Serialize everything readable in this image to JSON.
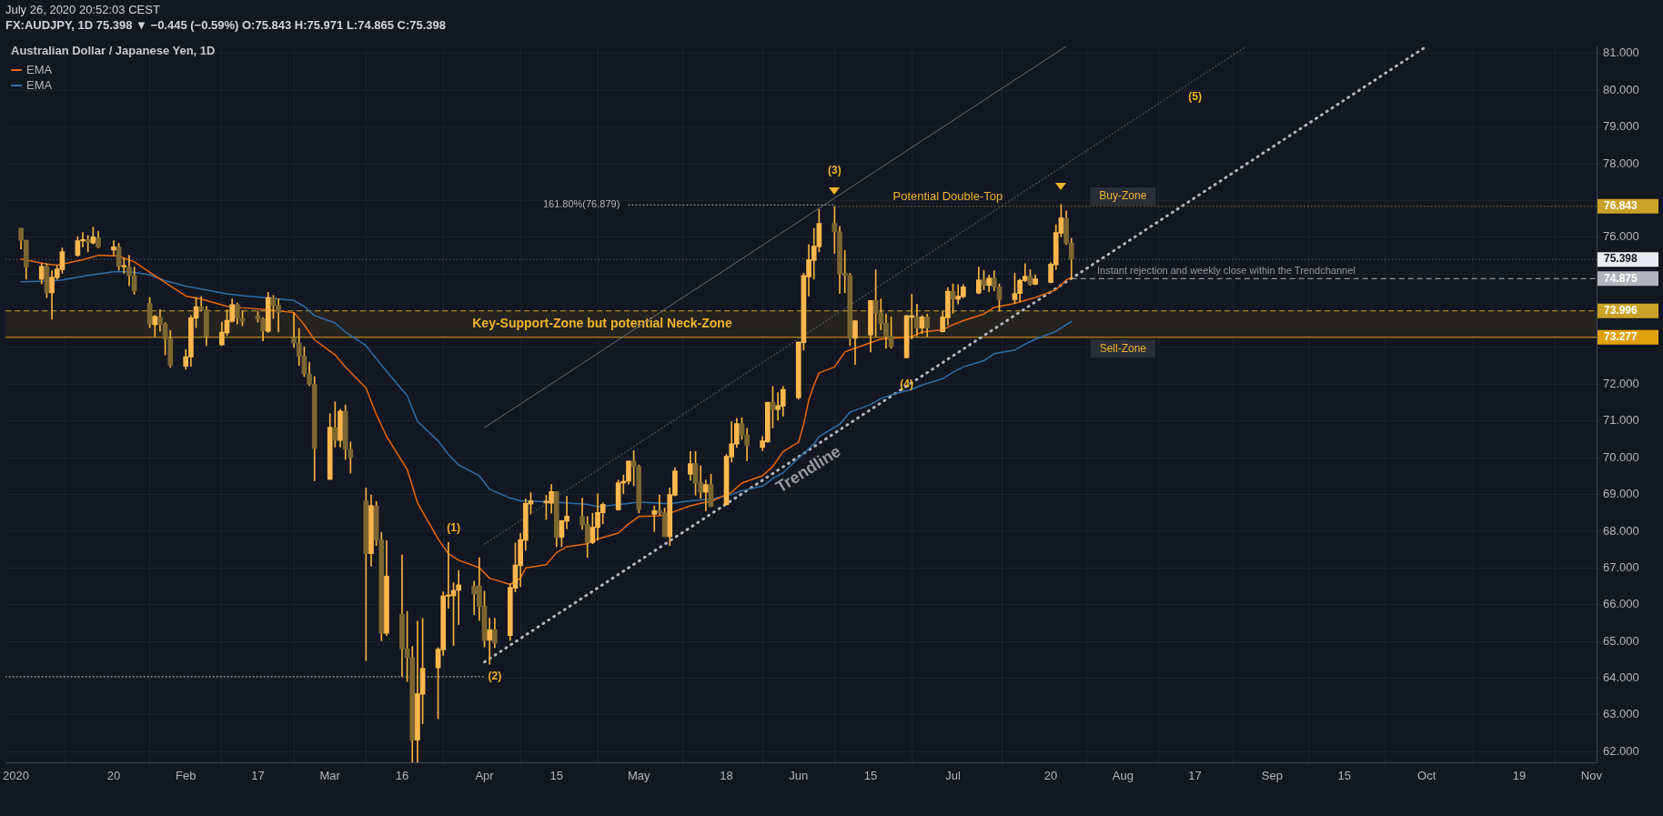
{
  "chart_data": {
    "type": "candlestick",
    "title": "Australian Dollar / Japanese Yen, 1D",
    "subtitle": "FX:AUDJPY, 1D  75.398 ▼ −0.445 (−0.59%) O:75.843 H:75.971 L:74.865 C:75.398",
    "x": [
      "2020-01-02",
      "2020-01-03",
      "2020-01-06",
      "2020-01-07",
      "2020-01-08",
      "2020-01-09",
      "2020-01-10",
      "2020-01-13",
      "2020-01-14",
      "2020-01-15",
      "2020-01-16",
      "2020-01-17",
      "2020-01-20",
      "2020-01-21",
      "2020-01-22",
      "2020-01-23",
      "2020-01-24",
      "2020-01-27",
      "2020-01-28",
      "2020-01-29",
      "2020-01-30",
      "2020-01-31",
      "2020-02-03",
      "2020-02-04",
      "2020-02-05",
      "2020-02-06",
      "2020-02-07",
      "2020-02-10",
      "2020-02-11",
      "2020-02-12",
      "2020-02-13",
      "2020-02-14",
      "2020-02-17",
      "2020-02-18",
      "2020-02-19",
      "2020-02-20",
      "2020-02-21",
      "2020-02-24",
      "2020-02-25",
      "2020-02-26",
      "2020-02-27",
      "2020-02-28",
      "2020-03-02",
      "2020-03-03",
      "2020-03-04",
      "2020-03-05",
      "2020-03-06",
      "2020-03-09",
      "2020-03-10",
      "2020-03-11",
      "2020-03-12",
      "2020-03-13",
      "2020-03-16",
      "2020-03-17",
      "2020-03-18",
      "2020-03-19",
      "2020-03-20",
      "2020-03-23",
      "2020-03-24",
      "2020-03-25",
      "2020-03-26",
      "2020-03-27",
      "2020-03-30",
      "2020-03-31",
      "2020-04-01",
      "2020-04-02",
      "2020-04-03",
      "2020-04-06",
      "2020-04-07",
      "2020-04-08",
      "2020-04-09",
      "2020-04-10",
      "2020-04-13",
      "2020-04-14",
      "2020-04-15",
      "2020-04-16",
      "2020-04-17",
      "2020-04-20",
      "2020-04-21",
      "2020-04-22",
      "2020-04-23",
      "2020-04-24",
      "2020-04-27",
      "2020-04-28",
      "2020-04-29",
      "2020-04-30",
      "2020-05-01",
      "2020-05-04",
      "2020-05-05",
      "2020-05-06",
      "2020-05-07",
      "2020-05-08",
      "2020-05-11",
      "2020-05-12",
      "2020-05-13",
      "2020-05-14",
      "2020-05-15",
      "2020-05-18",
      "2020-05-19",
      "2020-05-20",
      "2020-05-21",
      "2020-05-22",
      "2020-05-25",
      "2020-05-26",
      "2020-05-27",
      "2020-05-28",
      "2020-05-29",
      "2020-06-01",
      "2020-06-02",
      "2020-06-03",
      "2020-06-04",
      "2020-06-05",
      "2020-06-08",
      "2020-06-09",
      "2020-06-10",
      "2020-06-11",
      "2020-06-12",
      "2020-06-15",
      "2020-06-16",
      "2020-06-17",
      "2020-06-18",
      "2020-06-19",
      "2020-06-22",
      "2020-06-23",
      "2020-06-24",
      "2020-06-25",
      "2020-06-26",
      "2020-06-29",
      "2020-06-30",
      "2020-07-01",
      "2020-07-02",
      "2020-07-03",
      "2020-07-06",
      "2020-07-07",
      "2020-07-08",
      "2020-07-09",
      "2020-07-10",
      "2020-07-13",
      "2020-07-14",
      "2020-07-15",
      "2020-07-16",
      "2020-07-17",
      "2020-07-20",
      "2020-07-21",
      "2020-07-22",
      "2020-07-23",
      "2020-07-24"
    ],
    "ohlc": [
      [
        76.25,
        76.25,
        75.68,
        75.92
      ],
      [
        75.92,
        75.92,
        74.86,
        75.19
      ],
      [
        74.86,
        75.28,
        74.73,
        75.21
      ],
      [
        75.21,
        75.28,
        74.36,
        74.49
      ],
      [
        74.49,
        75.09,
        73.77,
        74.91
      ],
      [
        74.9,
        75.23,
        74.86,
        75.14
      ],
      [
        75.12,
        75.71,
        75.02,
        75.61
      ],
      [
        75.51,
        76.02,
        75.48,
        75.91
      ],
      [
        75.9,
        76.13,
        75.74,
        75.94
      ],
      [
        75.93,
        76.05,
        75.6,
        75.86
      ],
      [
        75.84,
        76.27,
        75.82,
        76.01
      ],
      [
        75.99,
        76.17,
        75.71,
        75.74
      ],
      [
        75.65,
        75.91,
        75.51,
        75.74
      ],
      [
        75.73,
        75.83,
        75.1,
        75.21
      ],
      [
        75.19,
        75.43,
        75.02,
        75.23
      ],
      [
        75.19,
        75.51,
        74.68,
        74.96
      ],
      [
        74.96,
        75.19,
        74.45,
        74.54
      ],
      [
        74.2,
        74.36,
        73.54,
        73.64
      ],
      [
        73.62,
        73.87,
        73.29,
        73.85
      ],
      [
        73.83,
        74.03,
        73.44,
        73.62
      ],
      [
        73.64,
        73.67,
        72.8,
        73.24
      ],
      [
        73.24,
        73.46,
        72.46,
        72.51
      ],
      [
        72.49,
        72.95,
        72.41,
        72.75
      ],
      [
        72.74,
        73.87,
        72.49,
        73.81
      ],
      [
        73.8,
        74.36,
        73.54,
        74.11
      ],
      [
        74.11,
        74.39,
        73.99,
        74.03
      ],
      [
        74.03,
        74.12,
        73.05,
        73.31
      ],
      [
        73.07,
        73.69,
        73.05,
        73.42
      ],
      [
        73.4,
        74.03,
        73.33,
        73.74
      ],
      [
        73.71,
        74.32,
        73.69,
        74.17
      ],
      [
        74.17,
        74.21,
        73.64,
        73.8
      ],
      [
        73.8,
        74.01,
        73.59,
        73.71
      ],
      [
        73.86,
        73.99,
        73.69,
        73.78
      ],
      [
        73.78,
        73.81,
        73.18,
        73.45
      ],
      [
        73.44,
        74.5,
        73.41,
        74.36
      ],
      [
        74.36,
        74.42,
        73.79,
        74.14
      ],
      [
        74.15,
        74.32,
        73.42,
        73.95
      ],
      [
        73.26,
        73.95,
        73.0,
        73.12
      ],
      [
        73.12,
        73.52,
        72.51,
        72.76
      ],
      [
        72.77,
        73.02,
        72.21,
        72.28
      ],
      [
        72.28,
        72.6,
        71.96,
        72.0
      ],
      [
        72.0,
        72.21,
        69.37,
        70.25
      ],
      [
        69.41,
        71.2,
        69.41,
        70.83
      ],
      [
        70.82,
        71.52,
        70.29,
        70.47
      ],
      [
        70.47,
        71.32,
        70.29,
        71.27
      ],
      [
        71.26,
        71.44,
        69.95,
        70.23
      ],
      [
        70.23,
        70.43,
        69.58,
        70.01
      ],
      [
        68.83,
        69.18,
        64.48,
        67.39
      ],
      [
        67.39,
        68.99,
        67.05,
        68.7
      ],
      [
        68.69,
        68.81,
        67.61,
        67.76
      ],
      [
        67.76,
        67.97,
        65.02,
        65.22
      ],
      [
        65.22,
        67.74,
        65.16,
        66.78
      ],
      [
        65.74,
        67.35,
        64.05,
        64.8
      ],
      [
        64.8,
        65.82,
        63.91,
        64.56
      ],
      [
        64.56,
        64.86,
        61.71,
        62.31
      ],
      [
        62.31,
        65.55,
        61.71,
        63.58
      ],
      [
        63.56,
        65.63,
        62.76,
        64.27
      ],
      [
        64.28,
        64.83,
        62.9,
        64.79
      ],
      [
        64.77,
        66.35,
        64.62,
        66.24
      ],
      [
        66.23,
        67.7,
        65.9,
        66.27
      ],
      [
        66.24,
        66.6,
        64.89,
        66.39
      ],
      [
        66.39,
        66.93,
        65.46,
        66.54
      ],
      [
        66.51,
        66.64,
        65.73,
        66.29
      ],
      [
        66.51,
        67.28,
        65.57,
        65.95
      ],
      [
        65.96,
        66.37,
        64.85,
        65.03
      ],
      [
        65.03,
        65.63,
        64.38,
        65.32
      ],
      [
        65.32,
        65.63,
        64.83,
        64.95
      ],
      [
        65.16,
        66.57,
        65.03,
        66.47
      ],
      [
        66.45,
        67.68,
        66.35,
        67.08
      ],
      [
        67.06,
        67.94,
        66.49,
        67.77
      ],
      [
        67.75,
        68.88,
        67.48,
        68.76
      ],
      [
        68.74,
        69.05,
        68.47,
        68.83
      ],
      [
        68.77,
        68.98,
        68.32,
        68.82
      ],
      [
        68.76,
        69.27,
        68.49,
        69.08
      ],
      [
        69.08,
        69.08,
        67.58,
        67.83
      ],
      [
        67.83,
        68.29,
        67.58,
        68.29
      ],
      [
        68.27,
        68.95,
        68.07,
        68.41
      ],
      [
        68.4,
        68.9,
        68.05,
        68.17
      ],
      [
        68.18,
        68.4,
        67.29,
        67.69
      ],
      [
        67.69,
        68.49,
        67.66,
        68.11
      ],
      [
        68.1,
        69.02,
        67.75,
        68.51
      ],
      [
        68.5,
        68.77,
        68.2,
        68.73
      ],
      [
        68.58,
        69.39,
        68.57,
        69.32
      ],
      [
        69.31,
        69.53,
        69.02,
        69.36
      ],
      [
        69.36,
        69.91,
        69.28,
        69.91
      ],
      [
        69.91,
        70.19,
        69.24,
        69.76
      ],
      [
        69.76,
        69.8,
        68.5,
        68.59
      ],
      [
        68.46,
        68.69,
        67.99,
        68.56
      ],
      [
        68.56,
        68.99,
        68.44,
        68.5
      ],
      [
        68.5,
        68.63,
        67.85,
        67.85
      ],
      [
        67.85,
        69.18,
        67.61,
        69.0
      ],
      [
        68.98,
        69.73,
        68.96,
        69.64
      ],
      [
        69.55,
        70.17,
        69.39,
        69.84
      ],
      [
        69.84,
        70.17,
        68.98,
        69.31
      ],
      [
        69.32,
        69.78,
        68.89,
        69.06
      ],
      [
        69.06,
        69.39,
        68.55,
        69.27
      ],
      [
        69.27,
        69.55,
        68.67,
        68.67
      ],
      [
        68.72,
        70.09,
        68.72,
        70.04
      ],
      [
        70.02,
        70.98,
        69.88,
        70.38
      ],
      [
        70.37,
        71.07,
        70.28,
        70.93
      ],
      [
        70.93,
        71.09,
        70.5,
        70.62
      ],
      [
        70.62,
        70.8,
        69.92,
        70.33
      ],
      [
        70.28,
        70.58,
        70.19,
        70.46
      ],
      [
        70.43,
        71.51,
        70.42,
        71.51
      ],
      [
        71.51,
        71.94,
        70.81,
        71.31
      ],
      [
        71.31,
        71.77,
        71.02,
        71.42
      ],
      [
        71.4,
        71.94,
        71.13,
        71.86
      ],
      [
        71.63,
        73.15,
        71.59,
        73.15
      ],
      [
        73.13,
        75.02,
        72.93,
        74.96
      ],
      [
        74.92,
        75.8,
        74.4,
        75.39
      ],
      [
        75.37,
        76.24,
        74.86,
        75.76
      ],
      [
        75.74,
        76.76,
        75.6,
        76.38
      ],
      [
        76.38,
        76.83,
        75.56,
        76.15
      ],
      [
        76.15,
        76.3,
        74.47,
        75.0
      ],
      [
        75.02,
        75.64,
        74.49,
        74.96
      ],
      [
        74.96,
        75.02,
        73.05,
        73.25
      ],
      [
        73.25,
        73.73,
        72.54,
        73.73
      ],
      [
        73.34,
        74.28,
        72.88,
        74.28
      ],
      [
        74.28,
        75.12,
        73.3,
        73.93
      ],
      [
        73.94,
        74.32,
        73.48,
        73.65
      ],
      [
        73.66,
        73.91,
        72.98,
        73.3
      ],
      [
        73.31,
        73.83,
        72.98,
        73.03
      ],
      [
        72.72,
        73.87,
        72.72,
        73.87
      ],
      [
        73.82,
        74.45,
        73.23,
        73.87
      ],
      [
        73.83,
        74.18,
        73.31,
        73.53
      ],
      [
        73.53,
        73.87,
        73.38,
        73.83
      ],
      [
        73.83,
        73.91,
        73.3,
        73.54
      ],
      [
        73.43,
        73.99,
        73.42,
        73.83
      ],
      [
        73.81,
        74.63,
        73.61,
        74.53
      ],
      [
        74.53,
        74.73,
        73.93,
        74.32
      ],
      [
        74.31,
        74.71,
        74.18,
        74.4
      ],
      [
        74.38,
        74.71,
        74.35,
        74.65
      ],
      [
        74.48,
        75.19,
        74.46,
        74.84
      ],
      [
        74.84,
        75.1,
        74.57,
        74.69
      ],
      [
        74.69,
        74.97,
        74.51,
        74.89
      ],
      [
        74.89,
        75.09,
        74.54,
        74.65
      ],
      [
        74.65,
        74.73,
        73.99,
        74.3
      ],
      [
        74.3,
        75.02,
        74.2,
        74.47
      ],
      [
        74.47,
        74.86,
        74.24,
        74.83
      ],
      [
        74.82,
        75.28,
        74.79,
        74.94
      ],
      [
        74.94,
        75.12,
        74.69,
        74.72
      ],
      [
        74.72,
        74.98,
        74.71,
        74.87
      ],
      [
        74.77,
        75.31,
        74.76,
        75.27
      ],
      [
        75.25,
        76.34,
        75.12,
        76.13
      ],
      [
        76.11,
        76.89,
        76.01,
        76.53
      ],
      [
        76.52,
        76.72,
        75.8,
        75.84
      ],
      [
        75.843,
        75.971,
        74.865,
        75.398
      ]
    ],
    "colors": [
      "#7c6631",
      "#7c6631",
      "#ffb74d",
      "#7c6631",
      "#ffb74d",
      "#ffb74d",
      "#ffb74d",
      "#ffb74d",
      "#ffb74d",
      "#7c6631",
      "#ffb74d",
      "#7c6631",
      "#ffb74d",
      "#7c6631",
      "#ffb74d",
      "#7c6631",
      "#7c6631",
      "#7c6631",
      "#ffb74d",
      "#7c6631",
      "#7c6631",
      "#7c6631",
      "#ffb74d",
      "#ffb74d",
      "#ffb74d",
      "#7c6631",
      "#7c6631",
      "#ffb74d",
      "#ffb74d",
      "#ffb74d",
      "#7c6631",
      "#7c6631",
      "#7c6631",
      "#7c6631",
      "#ffb74d",
      "#7c6631",
      "#7c6631",
      "#7c6631",
      "#7c6631",
      "#7c6631",
      "#7c6631",
      "#7c6631",
      "#ffb74d",
      "#7c6631",
      "#ffb74d",
      "#7c6631",
      "#7c6631",
      "#7c6631",
      "#ffb74d",
      "#7c6631",
      "#7c6631",
      "#ffb74d",
      "#7c6631",
      "#7c6631",
      "#7c6631",
      "#ffb74d",
      "#ffb74d",
      "#ffb74d",
      "#ffb74d",
      "#ffb74d",
      "#ffb74d",
      "#ffb74d",
      "#7c6631",
      "#7c6631",
      "#7c6631",
      "#ffb74d",
      "#7c6631",
      "#ffb74d",
      "#ffb74d",
      "#ffb74d",
      "#ffb74d",
      "#ffb74d",
      "#ffb74d",
      "#ffb74d",
      "#7c6631",
      "#ffb74d",
      "#ffb74d",
      "#7c6631",
      "#7c6631",
      "#ffb74d",
      "#ffb74d",
      "#ffb74d",
      "#ffb74d",
      "#ffb74d",
      "#ffb74d",
      "#7c6631",
      "#7c6631",
      "#ffb74d",
      "#7c6631",
      "#7c6631",
      "#ffb74d",
      "#ffb74d",
      "#ffb74d",
      "#7c6631",
      "#7c6631",
      "#ffb74d",
      "#7c6631",
      "#ffb74d",
      "#ffb74d",
      "#ffb74d",
      "#7c6631",
      "#7c6631",
      "#ffb74d",
      "#ffb74d",
      "#7c6631",
      "#ffb74d",
      "#ffb74d",
      "#ffb74d",
      "#ffb74d",
      "#ffb74d",
      "#ffb74d",
      "#ffb74d",
      "#7c6631",
      "#7c6631",
      "#7c6631",
      "#7c6631",
      "#ffb74d",
      "#ffb74d",
      "#7c6631",
      "#7c6631",
      "#7c6631",
      "#7c6631",
      "#ffb74d",
      "#ffb74d",
      "#7c6631",
      "#ffb74d",
      "#7c6631",
      "#ffb74d",
      "#ffb74d",
      "#7c6631",
      "#ffb74d",
      "#ffb74d",
      "#ffb74d",
      "#7c6631",
      "#ffb74d",
      "#7c6631",
      "#7c6631",
      "#ffb74d",
      "#ffb74d",
      "#ffb74d",
      "#7c6631",
      "#ffb74d",
      "#ffb74d",
      "#ffb74d",
      "#ffb74d",
      "#7c6631",
      "#7c6631"
    ],
    "series": [
      {
        "type": "line",
        "name": "EMA",
        "color": "#e8680c",
        "line_style": "solid",
        "x": [
          "2020-01-02",
          "2020-01-07",
          "2020-01-09",
          "2020-01-14",
          "2020-01-17",
          "2020-01-21",
          "2020-01-24",
          "2020-01-29",
          "2020-02-03",
          "2020-02-06",
          "2020-02-11",
          "2020-02-14",
          "2020-02-19",
          "2020-02-24",
          "2020-02-26",
          "2020-02-28",
          "2020-03-03",
          "2020-03-05",
          "2020-03-09",
          "2020-03-11",
          "2020-03-13",
          "2020-03-17",
          "2020-03-19",
          "2020-03-23",
          "2020-03-25",
          "2020-03-27",
          "2020-03-31",
          "2020-04-02",
          "2020-04-06",
          "2020-04-08",
          "2020-04-09",
          "2020-04-13",
          "2020-04-15",
          "2020-04-17",
          "2020-04-21",
          "2020-04-23",
          "2020-04-27",
          "2020-04-29",
          "2020-05-01",
          "2020-05-05",
          "2020-05-07",
          "2020-05-11",
          "2020-05-13",
          "2020-05-15",
          "2020-05-19",
          "2020-05-21",
          "2020-05-25",
          "2020-05-27",
          "2020-05-29",
          "2020-06-01",
          "2020-06-02",
          "2020-06-03",
          "2020-06-04",
          "2020-06-05",
          "2020-06-08",
          "2020-06-10",
          "2020-06-11",
          "2020-06-15",
          "2020-06-17",
          "2020-06-19",
          "2020-06-23",
          "2020-06-25",
          "2020-06-29",
          "2020-07-01",
          "2020-07-03",
          "2020-07-07",
          "2020-07-09",
          "2020-07-13",
          "2020-07-15",
          "2020-07-17",
          "2020-07-21",
          "2020-07-23",
          "2020-07-24"
        ],
        "values": [
          75.41,
          75.27,
          75.24,
          75.39,
          75.51,
          75.49,
          75.33,
          74.86,
          74.4,
          74.32,
          74.12,
          74.08,
          74.03,
          73.95,
          73.62,
          73.21,
          72.8,
          72.47,
          71.9,
          71.18,
          70.58,
          69.68,
          68.77,
          67.79,
          67.39,
          67.21,
          67.01,
          66.72,
          66.55,
          66.72,
          67.0,
          67.09,
          67.42,
          67.58,
          67.66,
          67.79,
          67.95,
          68.2,
          68.4,
          68.42,
          68.49,
          68.69,
          68.76,
          68.81,
          69.06,
          69.31,
          69.51,
          69.76,
          70.17,
          70.42,
          70.91,
          71.57,
          71.98,
          72.31,
          72.47,
          72.88,
          72.93,
          73.13,
          73.23,
          73.25,
          73.3,
          73.42,
          73.48,
          73.62,
          73.73,
          73.91,
          74.09,
          74.2,
          74.28,
          74.36,
          74.57,
          74.84,
          74.9
        ]
      },
      {
        "type": "line",
        "name": "EMA",
        "color": "#2f6fa8",
        "line_style": "solid",
        "x": [
          "2020-01-02",
          "2020-01-07",
          "2020-01-10",
          "2020-01-15",
          "2020-01-20",
          "2020-01-23",
          "2020-01-27",
          "2020-01-30",
          "2020-02-03",
          "2020-02-06",
          "2020-02-11",
          "2020-02-14",
          "2020-02-19",
          "2020-02-24",
          "2020-02-26",
          "2020-02-28",
          "2020-03-03",
          "2020-03-05",
          "2020-03-09",
          "2020-03-11",
          "2020-03-13",
          "2020-03-17",
          "2020-03-19",
          "2020-03-23",
          "2020-03-25",
          "2020-03-27",
          "2020-03-31",
          "2020-04-02",
          "2020-04-06",
          "2020-04-08",
          "2020-04-15",
          "2020-04-21",
          "2020-04-23",
          "2020-04-27",
          "2020-05-01",
          "2020-05-07",
          "2020-05-11",
          "2020-05-15",
          "2020-05-19",
          "2020-05-21",
          "2020-05-25",
          "2020-05-27",
          "2020-05-29",
          "2020-06-04",
          "2020-06-05",
          "2020-06-09",
          "2020-06-11",
          "2020-06-15",
          "2020-06-17",
          "2020-06-19",
          "2020-06-23",
          "2020-06-25",
          "2020-06-29",
          "2020-07-01",
          "2020-07-03",
          "2020-07-07",
          "2020-07-09",
          "2020-07-13",
          "2020-07-15",
          "2020-07-17",
          "2020-07-21",
          "2020-07-23",
          "2020-07-24"
        ],
        "values": [
          74.79,
          74.81,
          74.84,
          74.96,
          75.06,
          75.06,
          74.98,
          74.82,
          74.67,
          74.59,
          74.46,
          74.41,
          74.35,
          74.28,
          74.12,
          73.87,
          73.67,
          73.42,
          73.05,
          72.7,
          72.35,
          71.69,
          70.99,
          70.46,
          70.09,
          69.8,
          69.51,
          69.14,
          68.9,
          68.83,
          68.79,
          68.73,
          68.67,
          68.72,
          68.79,
          68.75,
          68.83,
          68.87,
          69.0,
          69.1,
          69.23,
          69.43,
          69.59,
          70.38,
          70.58,
          70.91,
          71.24,
          71.45,
          71.61,
          71.71,
          71.86,
          71.98,
          72.15,
          72.33,
          72.47,
          72.64,
          72.83,
          72.93,
          73.09,
          73.23,
          73.44,
          73.62,
          73.71
        ]
      },
      {
        "type": "line",
        "color": "#6a6d78",
        "line_style": "solid",
        "x": [
          "2020-04-01",
          "2020-07-23"
        ],
        "values": [
          70.82,
          81.2
        ]
      },
      {
        "type": "line",
        "color": "#6a6d78",
        "line_style": "dotted",
        "x": [
          "2020-04-01",
          "2020-08-27"
        ],
        "values": [
          67.65,
          81.2
        ]
      },
      {
        "type": "line",
        "color": "#b2b5be",
        "line_style": "dotted",
        "x": [
          "2020-04-01",
          "2020-10-01"
        ],
        "values": [
          64.44,
          81.2
        ]
      },
      {
        "type": "line",
        "color": "#b2b5be",
        "line_style": "dotted",
        "x": [
          "2020-04-29",
          "2020-06-08"
        ],
        "values": [
          76.88,
          76.88
        ]
      },
      {
        "type": "line",
        "color": "#d1d4dc",
        "line_style": "dotted",
        "x": [
          "2019-12-30",
          "2020-04-01"
        ],
        "values": [
          64.04,
          64.04
        ]
      }
    ],
    "xlim": [
      "2019-12-30",
      "2020-11-03"
    ],
    "xticks": [
      {
        "value": "2020-01-01",
        "label": "2020"
      },
      {
        "value": "2020-01-20",
        "label": "20"
      },
      {
        "value": "2020-02-03",
        "label": "Feb"
      },
      {
        "value": "2020-02-17",
        "label": "17"
      },
      {
        "value": "2020-03-02",
        "label": "Mar"
      },
      {
        "value": "2020-03-16",
        "label": "16"
      },
      {
        "value": "2020-04-01",
        "label": "Apr"
      },
      {
        "value": "2020-04-15",
        "label": "15"
      },
      {
        "value": "2020-05-01",
        "label": "May"
      },
      {
        "value": "2020-05-18",
        "label": "18"
      },
      {
        "value": "2020-06-01",
        "label": "Jun"
      },
      {
        "value": "2020-06-15",
        "label": "15"
      },
      {
        "value": "2020-07-01",
        "label": "Jul"
      },
      {
        "value": "2020-07-20",
        "label": "20"
      },
      {
        "value": "2020-08-03",
        "label": "Aug"
      },
      {
        "value": "2020-08-17",
        "label": "17"
      },
      {
        "value": "2020-09-01",
        "label": "Sep"
      },
      {
        "value": "2020-09-15",
        "label": "15"
      },
      {
        "value": "2020-10-01",
        "label": "Oct"
      },
      {
        "value": "2020-10-19",
        "label": "19"
      },
      {
        "value": "2020-11-02",
        "label": "Nov"
      }
    ],
    "ylim": [
      61.7,
      81.2
    ],
    "yticks": [
      {
        "value": 62,
        "label": "62.000"
      },
      {
        "value": 63,
        "label": "63.000"
      },
      {
        "value": 64,
        "label": "64.000"
      },
      {
        "value": 65,
        "label": "65.000"
      },
      {
        "value": 66,
        "label": "66.000"
      },
      {
        "value": 67,
        "label": "67.000"
      },
      {
        "value": 68,
        "label": "68.000"
      },
      {
        "value": 69,
        "label": "69.000"
      },
      {
        "value": 70,
        "label": "70.000"
      },
      {
        "value": 71,
        "label": "71.000"
      },
      {
        "value": 72,
        "label": "72.000"
      },
      {
        "value": 73,
        "label": null
      },
      {
        "value": 74,
        "label": null
      },
      {
        "value": 75,
        "label": null
      },
      {
        "value": 76,
        "label": "76.000"
      },
      {
        "value": 77,
        "label": null
      },
      {
        "value": 78,
        "label": "78.000"
      },
      {
        "value": 79,
        "label": "79.000"
      },
      {
        "value": 80,
        "label": "80.000"
      },
      {
        "value": 81,
        "label": "81.000"
      }
    ],
    "ref_lines": [
      {
        "axis": "y",
        "value": 73.277,
        "label": "73.277",
        "color": "#e0a10e",
        "line_style": "solid"
      },
      {
        "axis": "y",
        "value": 73.996,
        "label": "73.996",
        "color": "#c9a227",
        "line_style": "dashed"
      },
      {
        "axis": "y",
        "value": 75.398,
        "label": "75.398",
        "color": "#e9ebf0",
        "line_style": "dotted"
      },
      {
        "axis": "y",
        "value": 76.843,
        "label": "76.843",
        "color": "#c9a227",
        "line_style": "dotted"
      },
      {
        "axis": "y",
        "value": 74.875,
        "label": "74.875",
        "color": "#b2b5be",
        "line_style": "dashed"
      }
    ],
    "bands": [
      {
        "axis": "y",
        "from": 73.277,
        "to": 73.996,
        "label": "Key-Support-Zone but potential Neck-Zone",
        "color": "#25231f"
      }
    ],
    "annotations": [
      "July 26, 2020 20:52:03 CEST",
      "(1)",
      "(2)",
      "(3)",
      "(4)",
      "(5)",
      "Potential Double-Top",
      "Buy-Zone",
      "Sell-Zone",
      "Instant rejection and weekly close within the Trendchannel",
      "Trendline",
      "161.80%(76.879)"
    ],
    "grid": true,
    "legend": "top left"
  }
}
